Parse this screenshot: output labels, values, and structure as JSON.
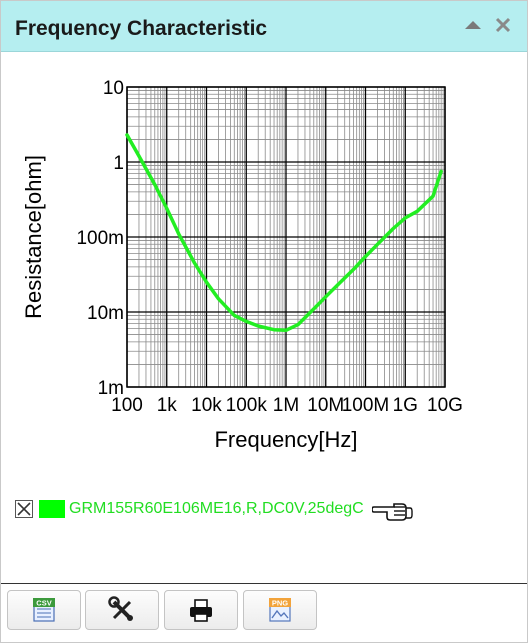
{
  "panel": {
    "title": "Frequency Characteristic",
    "collapse_icon": "triangle-up-icon",
    "close_icon": "close-icon"
  },
  "chart_data": {
    "type": "line",
    "xlabel": "Frequency[Hz]",
    "ylabel": "Resistance[ohm]",
    "x_scale": "log",
    "y_scale": "log",
    "xlim": [
      100,
      10000000000
    ],
    "ylim": [
      0.001,
      10
    ],
    "grid": true,
    "x_tick_labels": [
      "100",
      "1k",
      "10k",
      "100k",
      "1M",
      "10M",
      "100M",
      "1G",
      "10G"
    ],
    "y_tick_labels": [
      "10",
      "1",
      "100m",
      "10m",
      "1m"
    ],
    "series": [
      {
        "name": "GRM155R60E106ME16,R,DC0V,25degC",
        "color": "#22ee22",
        "x": [
          100,
          200,
          500,
          1000,
          2000,
          5000,
          10000,
          20000,
          50000,
          100000,
          200000,
          500000,
          1000000,
          2000000,
          5000000,
          10000000,
          20000000,
          50000000,
          100000000,
          200000000,
          500000000,
          1000000000,
          2000000000,
          5000000000,
          8000000000
        ],
        "y": [
          2.3,
          1.2,
          0.5,
          0.24,
          0.11,
          0.045,
          0.025,
          0.015,
          0.009,
          0.0075,
          0.0065,
          0.0058,
          0.0057,
          0.0068,
          0.011,
          0.016,
          0.023,
          0.037,
          0.055,
          0.08,
          0.13,
          0.18,
          0.22,
          0.35,
          0.75
        ]
      }
    ]
  },
  "legend": {
    "checkbox_checked": true,
    "swatch_color": "#00ff00",
    "label": "GRM155R60E106ME16,R,DC0V,25degC",
    "pointer_icon": "pointing-hand-icon"
  },
  "toolbar": {
    "buttons": [
      {
        "icon": "csv-export-icon",
        "badge": "CSV"
      },
      {
        "icon": "tools-icon"
      },
      {
        "icon": "print-icon"
      },
      {
        "icon": "png-export-icon",
        "badge": "PNG"
      }
    ]
  }
}
